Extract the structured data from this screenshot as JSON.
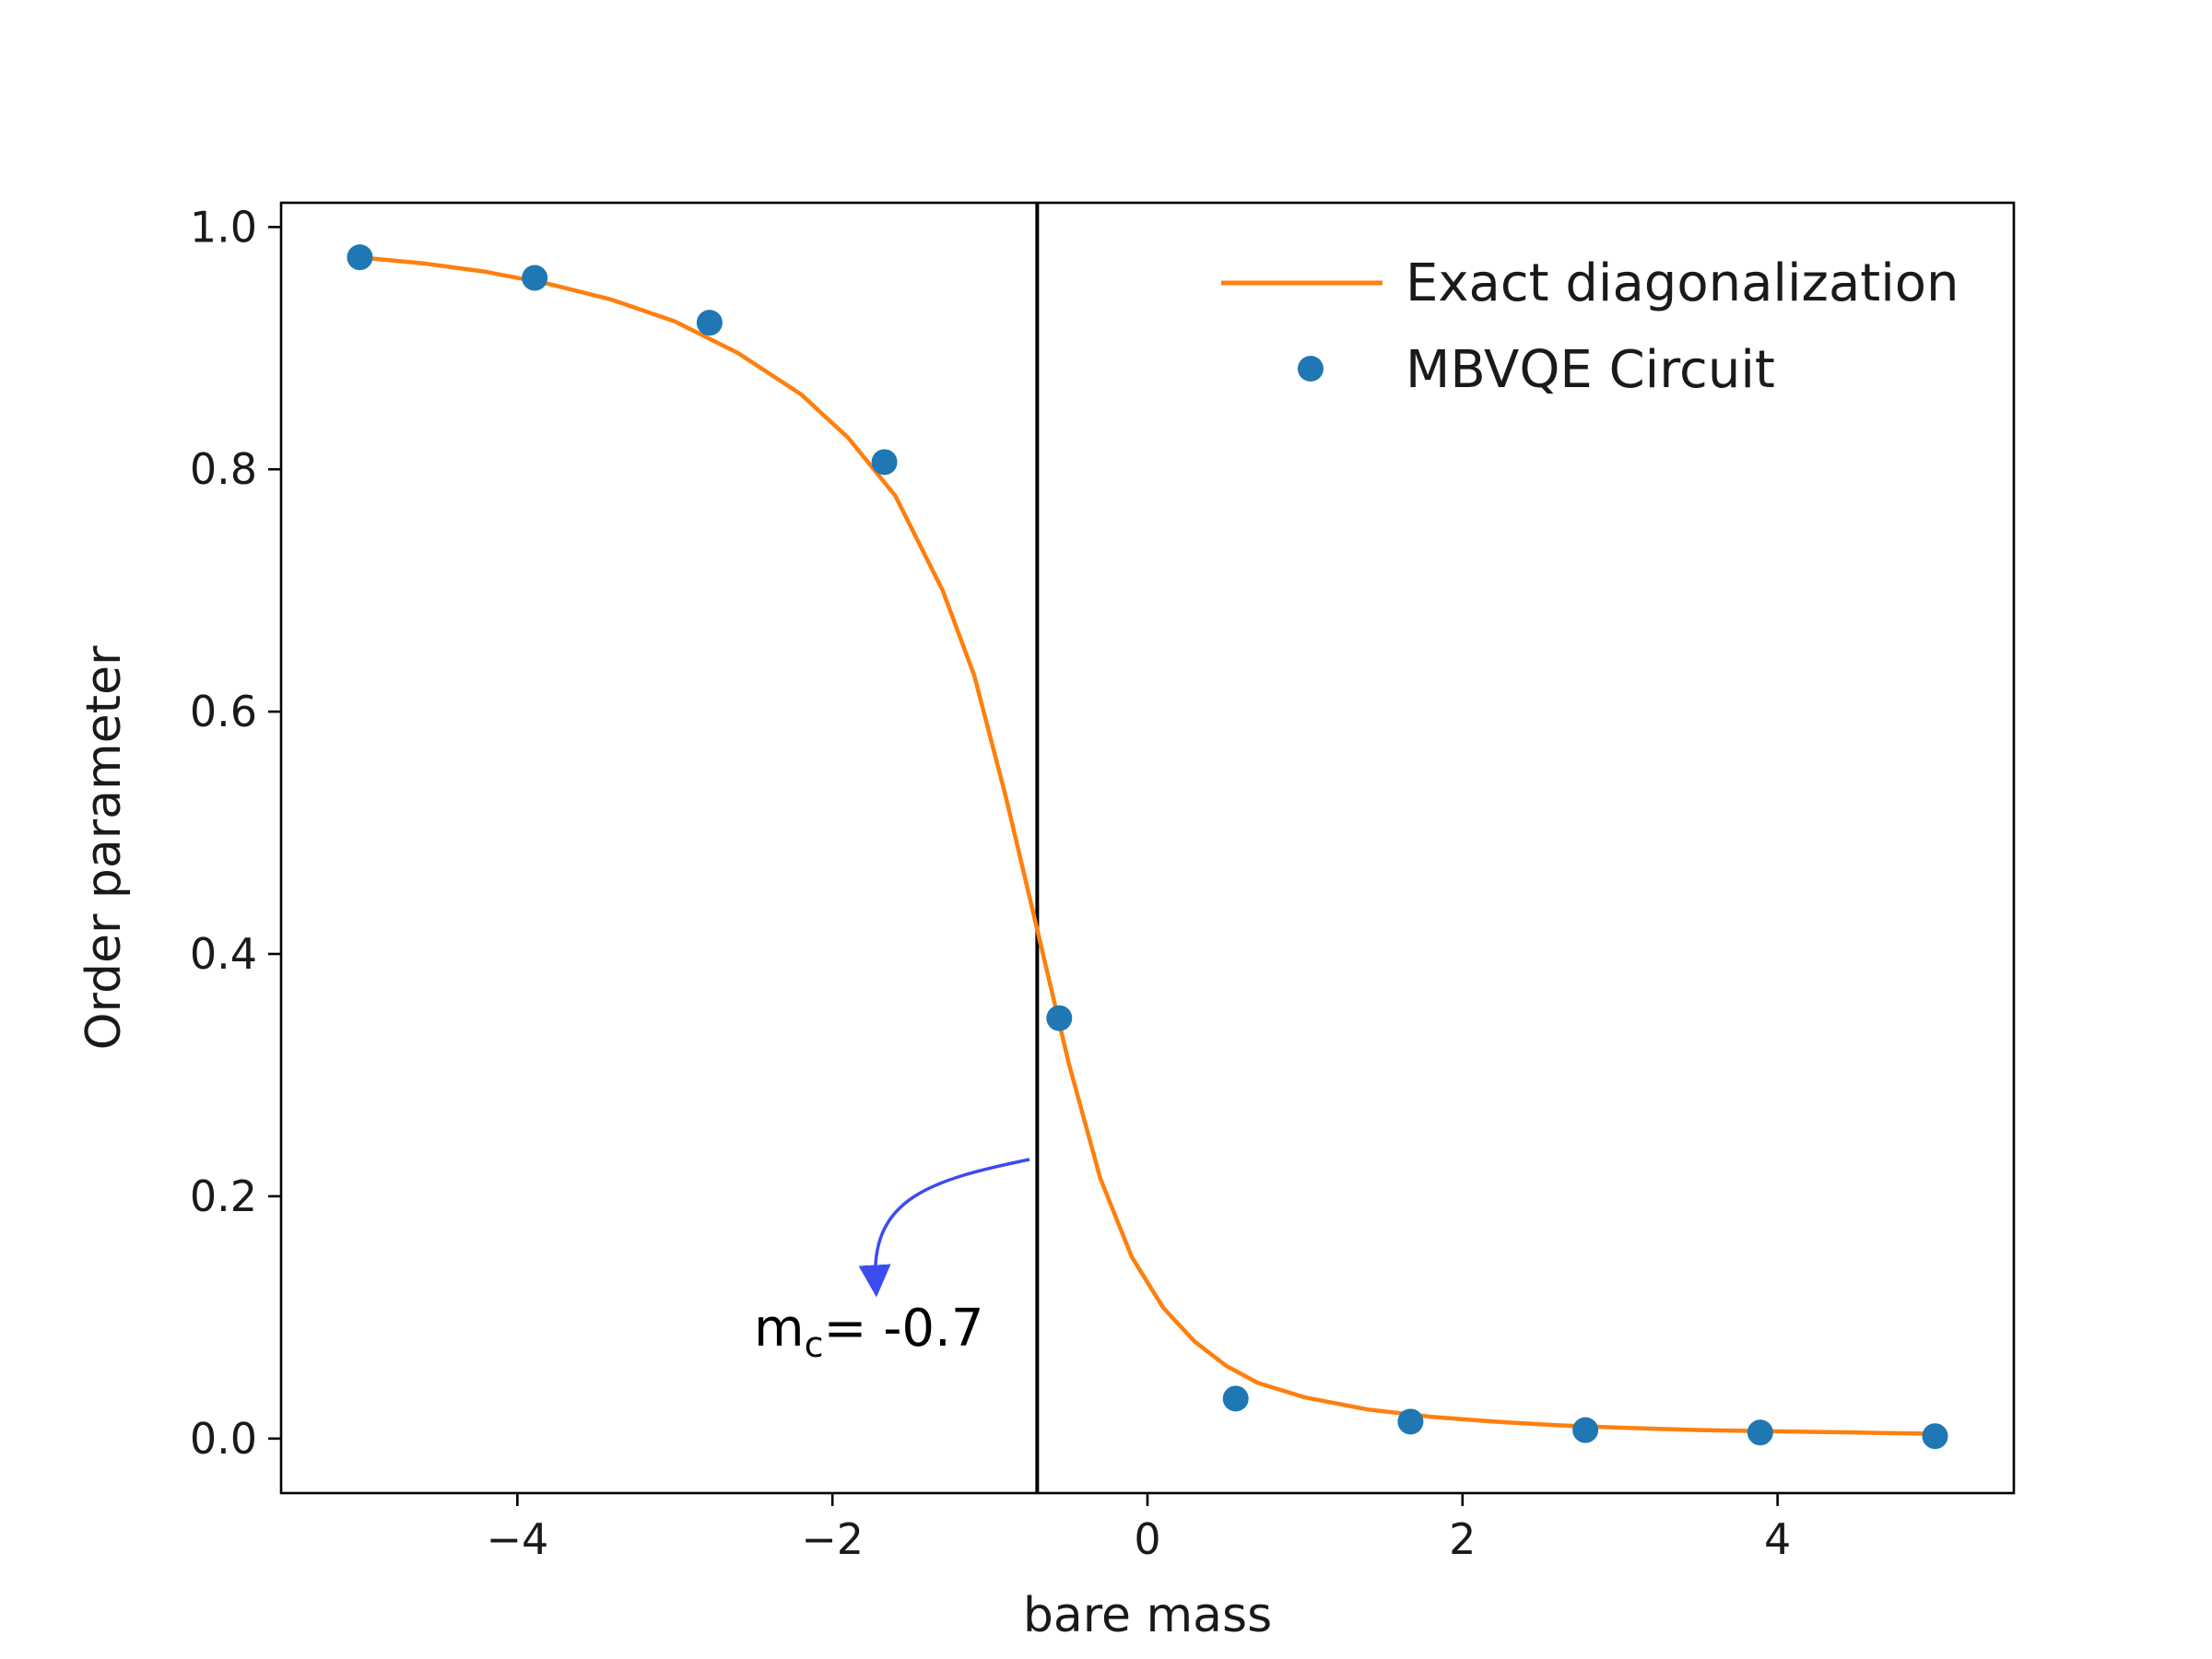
{
  "chart_data": {
    "type": "line",
    "title": "",
    "xlabel": "bare mass",
    "ylabel": "Order parameter",
    "xlim": [
      -5.5,
      5.5
    ],
    "ylim": [
      -0.045,
      1.02
    ],
    "xticks": [
      -4,
      -2,
      0,
      2,
      4
    ],
    "xtick_labels": [
      "−4",
      "−2",
      "0",
      "2",
      "4"
    ],
    "yticks": [
      0.0,
      0.2,
      0.4,
      0.6,
      0.8,
      1.0
    ],
    "ytick_labels": [
      "0.0",
      "0.2",
      "0.4",
      "0.6",
      "0.8",
      "1.0"
    ],
    "grid": false,
    "legend_position": "top-right",
    "series": [
      {
        "name": "Exact diagonalization",
        "kind": "line",
        "color": "#ff7f0e",
        "x": [
          -5.0,
          -4.6,
          -4.2,
          -3.8,
          -3.4,
          -3.0,
          -2.6,
          -2.2,
          -1.9,
          -1.6,
          -1.3,
          -1.1,
          -0.9,
          -0.7,
          -0.5,
          -0.3,
          -0.1,
          0.1,
          0.3,
          0.5,
          0.7,
          1.0,
          1.4,
          1.8,
          2.2,
          2.6,
          3.0,
          3.5,
          4.0,
          4.5,
          5.0
        ],
        "y": [
          0.975,
          0.97,
          0.963,
          0.953,
          0.94,
          0.922,
          0.896,
          0.862,
          0.826,
          0.778,
          0.7,
          0.63,
          0.53,
          0.42,
          0.31,
          0.215,
          0.15,
          0.108,
          0.08,
          0.06,
          0.046,
          0.034,
          0.024,
          0.018,
          0.014,
          0.011,
          0.009,
          0.007,
          0.006,
          0.005,
          0.004
        ]
      },
      {
        "name": "MBVQE Circuit",
        "kind": "scatter",
        "color": "#1f77b4",
        "x": [
          -5.0,
          -3.89,
          -2.78,
          -1.67,
          -0.56,
          0.56,
          1.67,
          2.78,
          3.89,
          5.0
        ],
        "y": [
          0.975,
          0.958,
          0.921,
          0.806,
          0.347,
          0.033,
          0.014,
          0.007,
          0.005,
          0.002
        ]
      }
    ],
    "vline": {
      "x": -0.7,
      "color": "#000000"
    },
    "annotation": {
      "text_main": "m",
      "text_sub": "c",
      "text_rest": "= -0.7",
      "arrow_color": "#3b4cf0"
    }
  }
}
